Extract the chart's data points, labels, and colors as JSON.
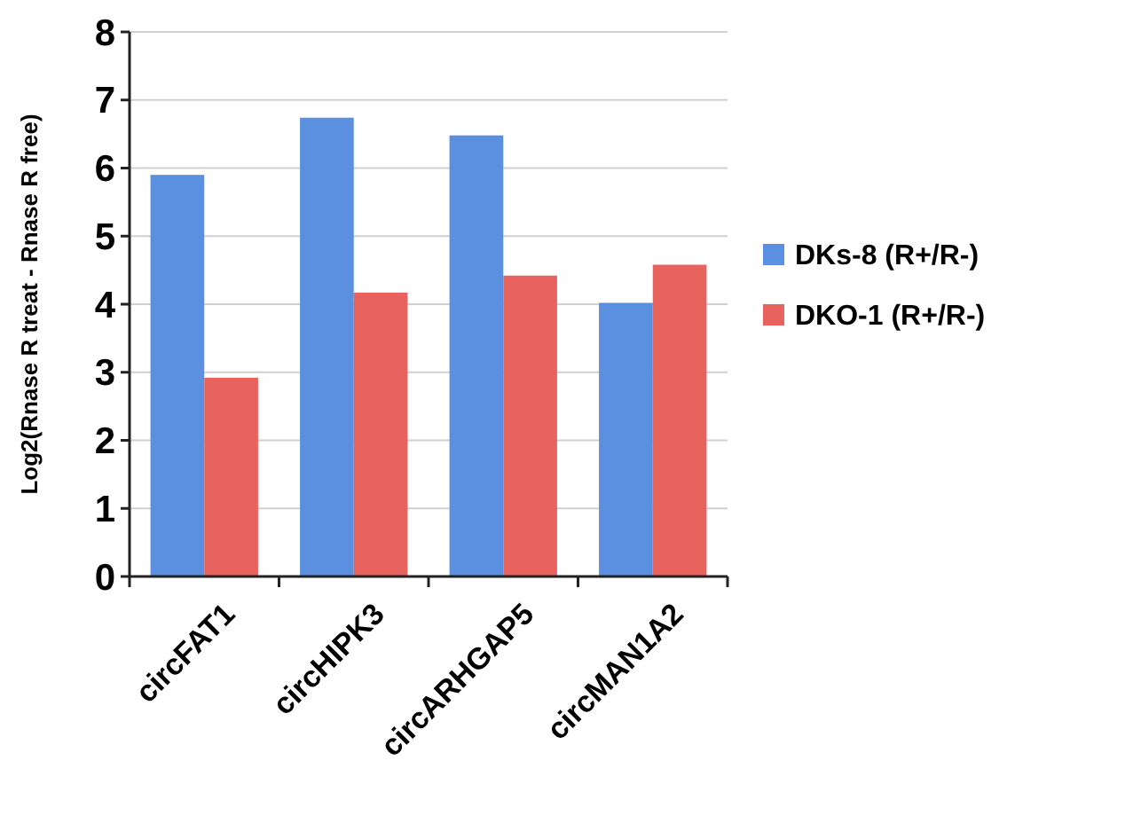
{
  "chart_data": {
    "type": "bar",
    "ylabel": "Log2(Rnase R treat - Rnase R free)",
    "categories": [
      "circFAT1",
      "circHIPK3",
      "circARHGAP5",
      "circMAN1A2"
    ],
    "series": [
      {
        "name": "DKs-8 (R+/R-)",
        "color": "#5b8fe0",
        "values": [
          5.9,
          6.74,
          6.48,
          4.02
        ]
      },
      {
        "name": "DKO-1 (R+/R-)",
        "color": "#e8625e",
        "values": [
          2.92,
          4.17,
          4.42,
          4.58
        ]
      }
    ],
    "ylim": [
      0,
      8
    ],
    "yticks": [
      0,
      1,
      2,
      3,
      4,
      5,
      6,
      7,
      8
    ],
    "grid": "y",
    "legend": "right"
  }
}
